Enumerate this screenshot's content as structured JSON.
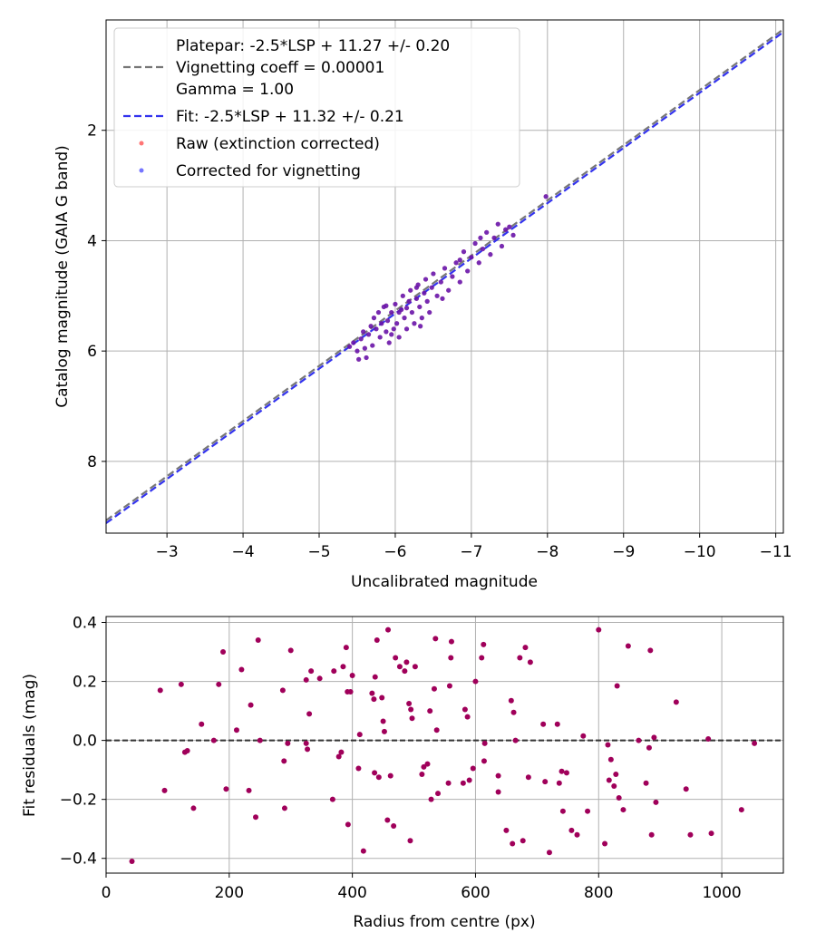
{
  "colors": {
    "platepar_line": "#777777",
    "fit_line": "#3333ee",
    "raw_points": "#ff3b3b",
    "corrected_points": "#3a3aff",
    "overlap_points": "#4a0cc0",
    "residual_points": "#a0005a",
    "grid": "#b0b0b0",
    "zero_line": "#333333"
  },
  "chart_data": [
    {
      "type": "scatter",
      "xlabel": "Uncalibrated magnitude",
      "ylabel": "Catalog magnitude (GAIA G band)",
      "xlim": [
        -2.2,
        -11.1
      ],
      "ylim": [
        9.3,
        0.0
      ],
      "xticks": [
        -3,
        -4,
        -5,
        -6,
        -7,
        -8,
        -9,
        -10,
        -11
      ],
      "xtick_labels": [
        "−3",
        "−4",
        "−5",
        "−6",
        "−7",
        "−8",
        "−9",
        "−10",
        "−11"
      ],
      "yticks": [
        2,
        4,
        6,
        8
      ],
      "ytick_labels": [
        "2",
        "4",
        "6",
        "8"
      ],
      "grid": true,
      "legend_position": "top-left",
      "legend": {
        "platepar": [
          "Platepar: -2.5*LSP + 11.27 +/- 0.20",
          "Vignetting coeff = 0.00001",
          "Gamma = 1.00"
        ],
        "fit": "Fit: -2.5*LSP + 11.32 +/- 0.21",
        "raw": "Raw (extinction corrected)",
        "corrected": "Corrected for vignetting"
      },
      "lines": [
        {
          "name": "Platepar",
          "slope": 1,
          "intercept": 11.27,
          "style": "dashed"
        },
        {
          "name": "Fit",
          "slope": 1,
          "intercept": 11.32,
          "style": "dashed"
        }
      ],
      "points": [
        {
          "x": -5.4,
          "y": 5.92
        },
        {
          "x": -5.45,
          "y": 5.85
        },
        {
          "x": -5.5,
          "y": 6.0
        },
        {
          "x": -5.55,
          "y": 5.78
        },
        {
          "x": -5.6,
          "y": 5.95
        },
        {
          "x": -5.62,
          "y": 6.12
        },
        {
          "x": -5.65,
          "y": 5.7
        },
        {
          "x": -5.68,
          "y": 5.55
        },
        {
          "x": -5.7,
          "y": 5.9
        },
        {
          "x": -5.72,
          "y": 5.4
        },
        {
          "x": -5.75,
          "y": 5.6
        },
        {
          "x": -5.78,
          "y": 5.3
        },
        {
          "x": -5.8,
          "y": 5.75
        },
        {
          "x": -5.82,
          "y": 5.5
        },
        {
          "x": -5.85,
          "y": 5.2
        },
        {
          "x": -5.88,
          "y": 5.65
        },
        {
          "x": -5.9,
          "y": 5.45
        },
        {
          "x": -5.92,
          "y": 5.85
        },
        {
          "x": -5.95,
          "y": 5.3
        },
        {
          "x": -5.98,
          "y": 5.6
        },
        {
          "x": -6.0,
          "y": 5.15
        },
        {
          "x": -6.02,
          "y": 5.5
        },
        {
          "x": -6.05,
          "y": 5.75
        },
        {
          "x": -6.08,
          "y": 5.25
        },
        {
          "x": -6.1,
          "y": 5.0
        },
        {
          "x": -6.12,
          "y": 5.4
        },
        {
          "x": -6.15,
          "y": 5.6
        },
        {
          "x": -6.18,
          "y": 5.1
        },
        {
          "x": -6.2,
          "y": 4.9
        },
        {
          "x": -6.22,
          "y": 5.3
        },
        {
          "x": -6.25,
          "y": 5.5
        },
        {
          "x": -6.28,
          "y": 5.05
        },
        {
          "x": -6.3,
          "y": 4.8
        },
        {
          "x": -6.32,
          "y": 5.2
        },
        {
          "x": -6.35,
          "y": 5.4
        },
        {
          "x": -6.38,
          "y": 4.95
        },
        {
          "x": -6.4,
          "y": 4.7
        },
        {
          "x": -6.42,
          "y": 5.1
        },
        {
          "x": -6.45,
          "y": 5.3
        },
        {
          "x": -6.48,
          "y": 4.85
        },
        {
          "x": -6.5,
          "y": 4.6
        },
        {
          "x": -6.55,
          "y": 5.0
        },
        {
          "x": -6.6,
          "y": 4.75
        },
        {
          "x": -6.65,
          "y": 4.5
        },
        {
          "x": -6.7,
          "y": 4.9
        },
        {
          "x": -6.75,
          "y": 4.65
        },
        {
          "x": -6.8,
          "y": 4.4
        },
        {
          "x": -6.85,
          "y": 4.75
        },
        {
          "x": -6.9,
          "y": 4.2
        },
        {
          "x": -6.95,
          "y": 4.55
        },
        {
          "x": -7.0,
          "y": 4.3
        },
        {
          "x": -7.05,
          "y": 4.05
        },
        {
          "x": -7.1,
          "y": 4.4
        },
        {
          "x": -7.15,
          "y": 4.15
        },
        {
          "x": -7.2,
          "y": 3.85
        },
        {
          "x": -7.25,
          "y": 4.25
        },
        {
          "x": -7.3,
          "y": 3.95
        },
        {
          "x": -7.35,
          "y": 3.7
        },
        {
          "x": -7.4,
          "y": 4.1
        },
        {
          "x": -7.45,
          "y": 3.8
        },
        {
          "x": -7.5,
          "y": 3.75
        },
        {
          "x": -7.55,
          "y": 3.9
        },
        {
          "x": -5.88,
          "y": 5.18
        },
        {
          "x": -6.05,
          "y": 5.3
        },
        {
          "x": -6.15,
          "y": 5.22
        },
        {
          "x": -6.28,
          "y": 4.85
        },
        {
          "x": -5.95,
          "y": 5.7
        },
        {
          "x": -5.58,
          "y": 5.65
        },
        {
          "x": -6.62,
          "y": 5.05
        },
        {
          "x": -6.85,
          "y": 4.35
        },
        {
          "x": -7.12,
          "y": 3.95
        },
        {
          "x": -6.33,
          "y": 5.55
        },
        {
          "x": -5.52,
          "y": 6.15
        },
        {
          "x": -7.98,
          "y": 3.2
        }
      ]
    },
    {
      "type": "scatter",
      "xlabel": "Radius from centre (px)",
      "ylabel": "Fit residuals (mag)",
      "xlim": [
        0,
        1100
      ],
      "ylim": [
        -0.45,
        0.42
      ],
      "xticks": [
        0,
        200,
        400,
        600,
        800,
        1000
      ],
      "xtick_labels": [
        "0",
        "200",
        "400",
        "600",
        "800",
        "1000"
      ],
      "yticks": [
        -0.4,
        -0.2,
        0.0,
        0.2,
        0.4
      ],
      "ytick_labels": [
        "−0.4",
        "−0.2",
        "0.0",
        "0.2",
        "0.4"
      ],
      "grid": true,
      "zero_line": 0.0,
      "points": [
        {
          "x": 42,
          "y": -0.41
        },
        {
          "x": 88,
          "y": 0.17
        },
        {
          "x": 95,
          "y": -0.17
        },
        {
          "x": 122,
          "y": 0.19
        },
        {
          "x": 128,
          "y": -0.04
        },
        {
          "x": 132,
          "y": -0.035
        },
        {
          "x": 142,
          "y": -0.23
        },
        {
          "x": 155,
          "y": 0.055
        },
        {
          "x": 175,
          "y": 0.0
        },
        {
          "x": 183,
          "y": 0.19
        },
        {
          "x": 190,
          "y": 0.3
        },
        {
          "x": 195,
          "y": -0.165
        },
        {
          "x": 212,
          "y": 0.035
        },
        {
          "x": 220,
          "y": 0.24
        },
        {
          "x": 232,
          "y": -0.17
        },
        {
          "x": 235,
          "y": 0.12
        },
        {
          "x": 243,
          "y": -0.26
        },
        {
          "x": 247,
          "y": 0.34
        },
        {
          "x": 250,
          "y": 0.0
        },
        {
          "x": 287,
          "y": 0.17
        },
        {
          "x": 289,
          "y": -0.07
        },
        {
          "x": 290,
          "y": -0.23
        },
        {
          "x": 295,
          "y": -0.01
        },
        {
          "x": 300,
          "y": 0.305
        },
        {
          "x": 325,
          "y": -0.01
        },
        {
          "x": 327,
          "y": -0.03
        },
        {
          "x": 325,
          "y": 0.205
        },
        {
          "x": 330,
          "y": 0.09
        },
        {
          "x": 333,
          "y": 0.235
        },
        {
          "x": 347,
          "y": 0.21
        },
        {
          "x": 368,
          "y": -0.2
        },
        {
          "x": 370,
          "y": 0.235
        },
        {
          "x": 378,
          "y": -0.055
        },
        {
          "x": 382,
          "y": -0.04
        },
        {
          "x": 385,
          "y": 0.25
        },
        {
          "x": 390,
          "y": 0.315
        },
        {
          "x": 392,
          "y": 0.165
        },
        {
          "x": 393,
          "y": -0.285
        },
        {
          "x": 397,
          "y": 0.165
        },
        {
          "x": 400,
          "y": 0.22
        },
        {
          "x": 410,
          "y": -0.095
        },
        {
          "x": 412,
          "y": 0.02
        },
        {
          "x": 418,
          "y": -0.375
        },
        {
          "x": 432,
          "y": 0.16
        },
        {
          "x": 435,
          "y": 0.14
        },
        {
          "x": 436,
          "y": -0.11
        },
        {
          "x": 437,
          "y": 0.215
        },
        {
          "x": 440,
          "y": 0.34
        },
        {
          "x": 443,
          "y": -0.125
        },
        {
          "x": 448,
          "y": 0.145
        },
        {
          "x": 450,
          "y": 0.065
        },
        {
          "x": 452,
          "y": 0.03
        },
        {
          "x": 457,
          "y": -0.27
        },
        {
          "x": 458,
          "y": 0.375
        },
        {
          "x": 462,
          "y": -0.12
        },
        {
          "x": 467,
          "y": -0.29
        },
        {
          "x": 470,
          "y": 0.28
        },
        {
          "x": 477,
          "y": 0.25
        },
        {
          "x": 485,
          "y": 0.235
        },
        {
          "x": 488,
          "y": 0.265
        },
        {
          "x": 492,
          "y": 0.125
        },
        {
          "x": 494,
          "y": -0.34
        },
        {
          "x": 495,
          "y": 0.105
        },
        {
          "x": 497,
          "y": 0.075
        },
        {
          "x": 502,
          "y": 0.25
        },
        {
          "x": 513,
          "y": -0.115
        },
        {
          "x": 516,
          "y": -0.09
        },
        {
          "x": 522,
          "y": -0.08
        },
        {
          "x": 526,
          "y": 0.1
        },
        {
          "x": 528,
          "y": -0.2
        },
        {
          "x": 533,
          "y": 0.175
        },
        {
          "x": 535,
          "y": 0.345
        },
        {
          "x": 537,
          "y": 0.035
        },
        {
          "x": 539,
          "y": -0.18
        },
        {
          "x": 556,
          "y": -0.145
        },
        {
          "x": 558,
          "y": 0.185
        },
        {
          "x": 560,
          "y": 0.28
        },
        {
          "x": 561,
          "y": 0.335
        },
        {
          "x": 580,
          "y": -0.145
        },
        {
          "x": 583,
          "y": 0.105
        },
        {
          "x": 587,
          "y": 0.08
        },
        {
          "x": 590,
          "y": -0.135
        },
        {
          "x": 596,
          "y": -0.095
        },
        {
          "x": 600,
          "y": 0.2
        },
        {
          "x": 610,
          "y": 0.28
        },
        {
          "x": 613,
          "y": 0.325
        },
        {
          "x": 614,
          "y": -0.07
        },
        {
          "x": 615,
          "y": -0.01
        },
        {
          "x": 637,
          "y": -0.12
        },
        {
          "x": 637,
          "y": -0.175
        },
        {
          "x": 650,
          "y": -0.305
        },
        {
          "x": 658,
          "y": 0.135
        },
        {
          "x": 660,
          "y": -0.35
        },
        {
          "x": 662,
          "y": 0.095
        },
        {
          "x": 665,
          "y": 0.0
        },
        {
          "x": 672,
          "y": 0.28
        },
        {
          "x": 677,
          "y": -0.34
        },
        {
          "x": 681,
          "y": 0.315
        },
        {
          "x": 686,
          "y": -0.125
        },
        {
          "x": 689,
          "y": 0.265
        },
        {
          "x": 710,
          "y": 0.055
        },
        {
          "x": 713,
          "y": -0.14
        },
        {
          "x": 720,
          "y": -0.38
        },
        {
          "x": 733,
          "y": 0.055
        },
        {
          "x": 736,
          "y": -0.145
        },
        {
          "x": 740,
          "y": -0.105
        },
        {
          "x": 742,
          "y": -0.24
        },
        {
          "x": 748,
          "y": -0.11
        },
        {
          "x": 756,
          "y": -0.305
        },
        {
          "x": 765,
          "y": -0.32
        },
        {
          "x": 775,
          "y": 0.015
        },
        {
          "x": 782,
          "y": -0.24
        },
        {
          "x": 800,
          "y": 0.375
        },
        {
          "x": 810,
          "y": -0.35
        },
        {
          "x": 815,
          "y": -0.015
        },
        {
          "x": 817,
          "y": -0.135
        },
        {
          "x": 820,
          "y": -0.065
        },
        {
          "x": 825,
          "y": -0.155
        },
        {
          "x": 828,
          "y": -0.115
        },
        {
          "x": 830,
          "y": 0.185
        },
        {
          "x": 833,
          "y": -0.195
        },
        {
          "x": 840,
          "y": -0.235
        },
        {
          "x": 848,
          "y": 0.32
        },
        {
          "x": 865,
          "y": 0.0
        },
        {
          "x": 877,
          "y": -0.145
        },
        {
          "x": 882,
          "y": -0.025
        },
        {
          "x": 884,
          "y": 0.305
        },
        {
          "x": 886,
          "y": -0.32
        },
        {
          "x": 890,
          "y": 0.01
        },
        {
          "x": 893,
          "y": -0.21
        },
        {
          "x": 926,
          "y": 0.13
        },
        {
          "x": 942,
          "y": -0.165
        },
        {
          "x": 949,
          "y": -0.32
        },
        {
          "x": 978,
          "y": 0.005
        },
        {
          "x": 983,
          "y": -0.315
        },
        {
          "x": 1032,
          "y": -0.235
        },
        {
          "x": 1053,
          "y": -0.01
        }
      ]
    }
  ]
}
